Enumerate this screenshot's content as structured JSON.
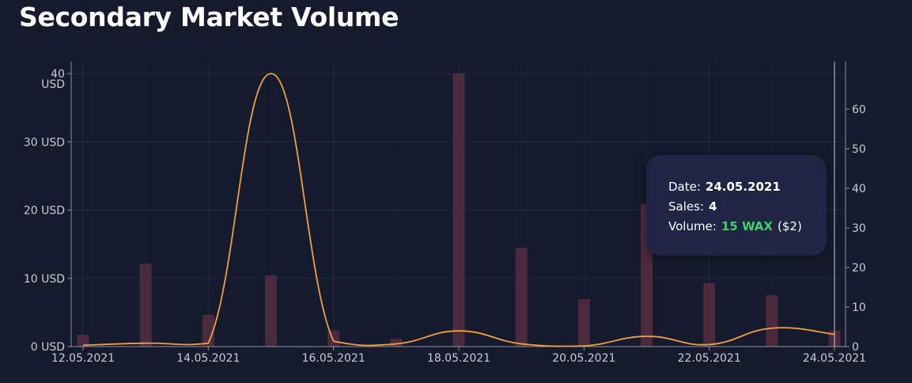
{
  "header": {
    "title": "Secondary Market Volume"
  },
  "colors": {
    "background": "#151a2d",
    "grid": "#232a44",
    "axis": "#8c90a3",
    "bars": "#4a2a3d",
    "line": "#f2a03d",
    "wax_green": "#3ecf6f"
  },
  "chart_data": {
    "type": "bar+line",
    "title": "Secondary Market Volume",
    "x": [
      "12.05.2021",
      "13.05.2021",
      "14.05.2021",
      "15.05.2021",
      "16.05.2021",
      "17.05.2021",
      "18.05.2021",
      "19.05.2021",
      "20.05.2021",
      "21.05.2021",
      "22.05.2021",
      "23.05.2021",
      "24.05.2021"
    ],
    "x_tick_labels": [
      "12.05.2021",
      "14.05.2021",
      "16.05.2021",
      "18.05.2021",
      "20.05.2021",
      "22.05.2021",
      "24.05.2021"
    ],
    "series": [
      {
        "type": "line",
        "axis": "left",
        "values": [
          0.2,
          0.5,
          0.5,
          40,
          0.8,
          0.4,
          2.3,
          0.4,
          0.1,
          1.5,
          0.3,
          2.7,
          1.8
        ]
      },
      {
        "type": "bar",
        "axis": "right",
        "values": [
          3,
          21,
          8,
          18,
          4,
          2,
          69,
          25,
          12,
          36,
          16,
          13,
          4
        ]
      }
    ],
    "y_left": {
      "ticks": [
        "0 USD",
        "10 USD",
        "20 USD",
        "30 USD",
        "40"
      ],
      "top_unit": "USD",
      "ylim": [
        0,
        40
      ]
    },
    "y_right": {
      "ticks": [
        "0",
        "10",
        "20",
        "30",
        "40",
        "50",
        "60"
      ],
      "ylim": [
        0,
        68
      ]
    },
    "grid": true
  },
  "tooltip": {
    "date_label": "Date:",
    "date_value": "24.05.2021",
    "sales_label": "Sales:",
    "sales_value": "4",
    "volume_label": "Volume:",
    "volume_wax": "15 WAX",
    "volume_usd": "($2)"
  }
}
